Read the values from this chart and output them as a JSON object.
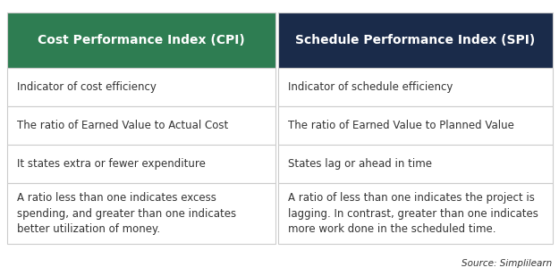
{
  "header_left": "Cost Performance Index (CPI)",
  "header_right": "Schedule Performance Index (SPI)",
  "header_left_color": "#2e7d52",
  "header_right_color": "#1a2b4a",
  "header_text_color": "#ffffff",
  "row_text_color": "#333333",
  "border_color": "#cccccc",
  "background_color": "#ffffff",
  "outer_border_color": "#bbbbbb",
  "source_text": "Source: Simplilearn",
  "rows": [
    {
      "left": "Indicator of cost efficiency",
      "right": "Indicator of schedule efficiency"
    },
    {
      "left": "The ratio of Earned Value to Actual Cost",
      "right": "The ratio of Earned Value to Planned Value"
    },
    {
      "left": "It states extra or fewer expenditure",
      "right": "States lag or ahead in time"
    },
    {
      "left": "A ratio less than one indicates excess\nspending, and greater than one indicates\nbetter utilization of money.",
      "right": "A ratio of less than one indicates the project is\nlagging. In contrast, greater than one indicates\nmore work done in the scheduled time."
    }
  ],
  "fig_width": 6.25,
  "fig_height": 3.09,
  "dpi": 100,
  "header_fontsize": 10.0,
  "row_fontsize": 8.5,
  "source_fontsize": 7.5
}
